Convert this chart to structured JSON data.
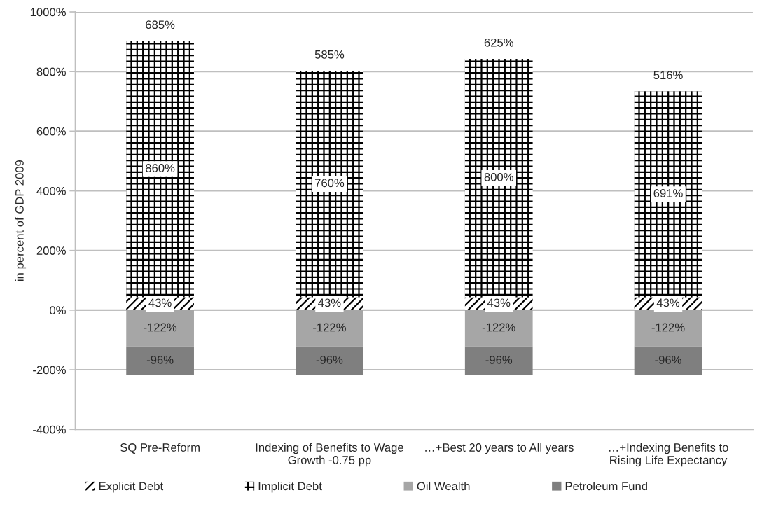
{
  "chart_data": {
    "type": "bar",
    "stacked": true,
    "ylabel": "in percent of GDP 2009",
    "categories": [
      "SQ Pre-Reform",
      "Indexing of Benefits to Wage\nGrowth -0.75 pp",
      "…+Best 20 years to All years",
      "…+Indexing Benefits to\nRising Life Expectancy"
    ],
    "series": [
      {
        "name": "Explicit Debt",
        "color": "#000000",
        "values": [
          43,
          43,
          43,
          43
        ],
        "value_labels": [
          "43%",
          "43%",
          "43%",
          "43%"
        ]
      },
      {
        "name": "Implicit Debt",
        "color": "#000000",
        "values": [
          860,
          760,
          800,
          691
        ],
        "value_labels": [
          "860%",
          "760%",
          "800%",
          "691%"
        ]
      },
      {
        "name": "Oil Wealth",
        "color": "#a6a6a6",
        "values": [
          -122,
          -122,
          -122,
          -122
        ],
        "value_labels": [
          "-122%",
          "-122%",
          "-122%",
          "-122%"
        ]
      },
      {
        "name": "Petroleum Fund",
        "color": "#7f7f7f",
        "values": [
          -96,
          -96,
          -96,
          -96
        ],
        "value_labels": [
          "-96%",
          "-96%",
          "-96%",
          "-96%"
        ]
      }
    ],
    "totals": [
      "685%",
      "585%",
      "625%",
      "516%"
    ],
    "ylim": [
      -400,
      1000
    ],
    "yticks": [
      {
        "value": -400,
        "label": "-400%"
      },
      {
        "value": -200,
        "label": "-200%"
      },
      {
        "value": 0,
        "label": "0%"
      },
      {
        "value": 200,
        "label": "200%"
      },
      {
        "value": 400,
        "label": "400%"
      },
      {
        "value": 600,
        "label": "600%"
      },
      {
        "value": 800,
        "label": "800%"
      },
      {
        "value": 1000,
        "label": "1000%"
      }
    ],
    "grid": "y",
    "legend": "bottom"
  }
}
